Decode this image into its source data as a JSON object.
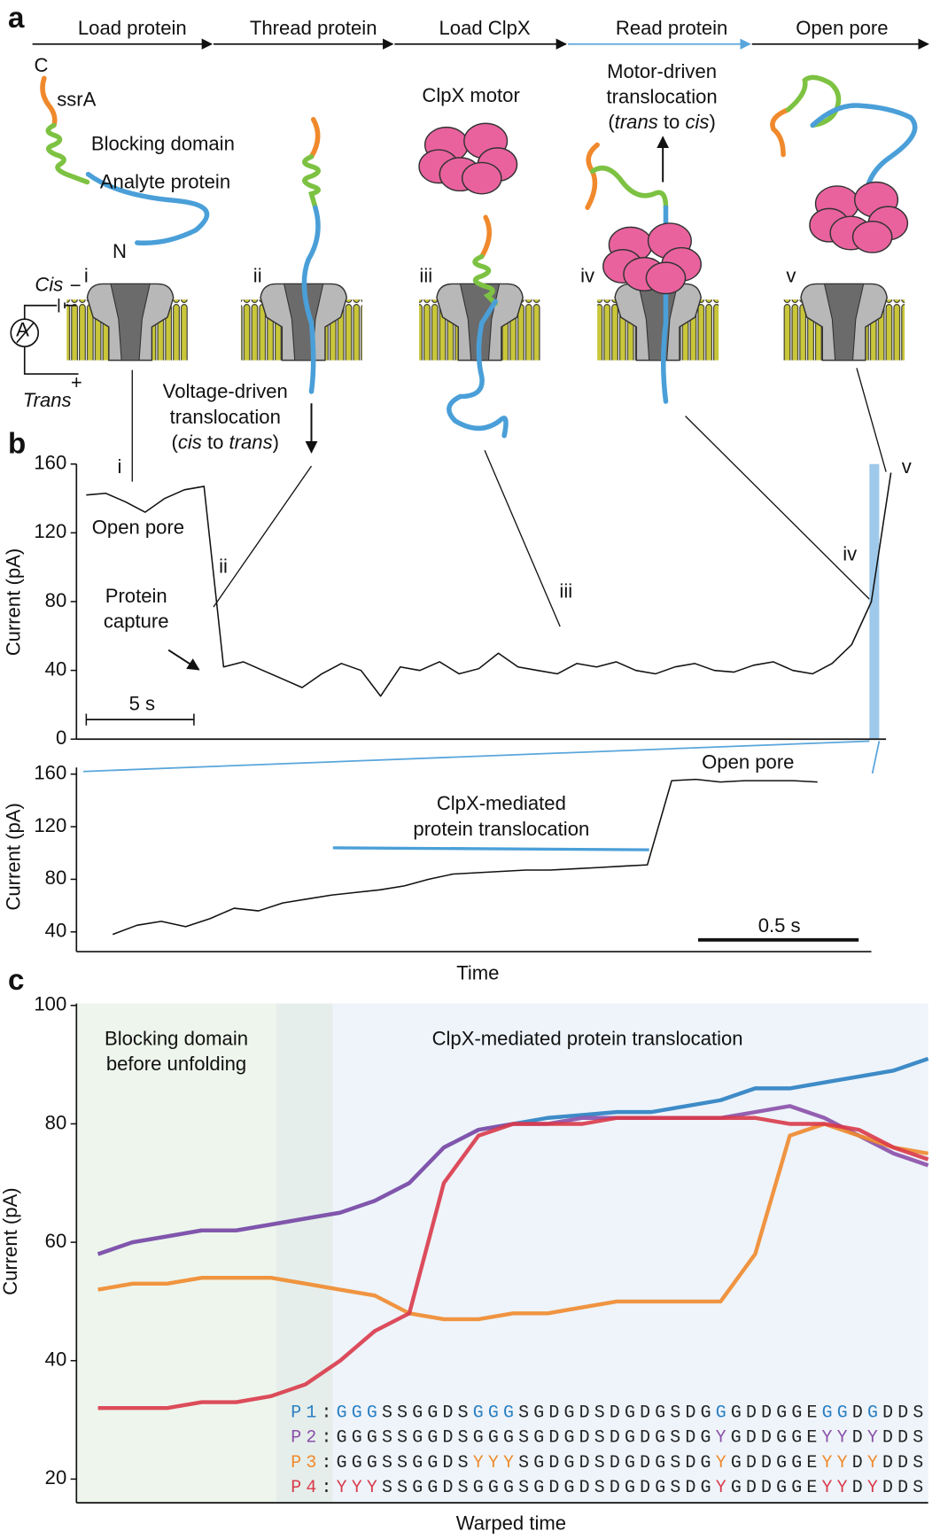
{
  "panel_labels": [
    "a",
    "b",
    "c"
  ],
  "panel_a": {
    "steps": [
      "Load protein",
      "Thread protein",
      "Load ClpX",
      "Read protein",
      "Open pore"
    ],
    "stages": [
      "i",
      "ii",
      "iii",
      "iv",
      "v"
    ],
    "labels": [
      "C",
      "ssrA",
      "Blocking domain",
      "Analyte protein",
      "N",
      "ClpX motor"
    ],
    "cis": "Cis",
    "trans": "Trans",
    "plus": "+",
    "minus": "−",
    "ammeter": "A",
    "motor_note": [
      [
        {
          "text": "Motor-driven",
          "italic": false
        }
      ],
      [
        {
          "text": "translocation",
          "italic": false
        }
      ],
      [
        {
          "text": "(",
          "italic": false
        },
        {
          "text": "trans",
          "italic": true
        },
        {
          "text": " to ",
          "italic": false
        },
        {
          "text": "cis",
          "italic": true
        },
        {
          "text": ")",
          "italic": false
        }
      ]
    ],
    "voltage_note": [
      [
        {
          "text": "Voltage-driven",
          "italic": false
        }
      ],
      [
        {
          "text": "translocation",
          "italic": false
        }
      ],
      [
        {
          "text": "(",
          "italic": false
        },
        {
          "text": "cis",
          "italic": true
        },
        {
          "text": " to ",
          "italic": false
        },
        {
          "text": "trans",
          "italic": true
        },
        {
          "text": ")",
          "italic": false
        }
      ]
    ]
  },
  "chart_data": [
    {
      "type": "line",
      "ylabel": "Current (pA)",
      "ylim": [
        0,
        160
      ],
      "yticks": [
        0,
        40,
        80,
        120,
        160
      ],
      "color": "#111",
      "values": [
        142,
        143,
        138,
        132,
        140,
        145,
        147,
        42,
        45,
        40,
        35,
        30,
        38,
        44,
        40,
        25,
        42,
        40,
        45,
        38,
        41,
        50,
        42,
        40,
        38,
        44,
        42,
        45,
        40,
        38,
        42,
        44,
        40,
        39,
        43,
        45,
        40,
        38,
        44,
        55,
        80,
        155
      ],
      "annotations": [
        "i",
        "Open pore",
        "ii",
        "Protein",
        "capture",
        "iii",
        "iv",
        "v",
        "5 s"
      ]
    },
    {
      "type": "line",
      "ylabel": "Current (pA)",
      "xlabel": "Time",
      "ylim": [
        25,
        165
      ],
      "yticks": [
        40,
        80,
        120,
        160
      ],
      "color": "#111",
      "values": [
        38,
        45,
        48,
        44,
        50,
        58,
        56,
        62,
        65,
        68,
        70,
        72,
        75,
        80,
        84,
        85,
        86,
        87,
        87,
        88,
        89,
        90,
        91,
        155,
        156,
        154,
        155,
        155,
        155,
        154
      ],
      "annotations": [
        "Open pore",
        "ClpX-mediated",
        "protein translocation",
        "0.5 s"
      ]
    },
    {
      "type": "line",
      "ylabel": "Current (pA)",
      "xlabel": "Warped time",
      "ylim": [
        16,
        100
      ],
      "yticks": [
        20,
        40,
        60,
        80,
        100
      ],
      "series": [
        {
          "color": "#2a7fc1",
          "values": [
            58,
            60,
            61,
            62,
            62,
            63,
            64,
            65,
            67,
            70,
            76,
            79,
            80,
            81,
            81.5,
            82,
            82,
            83,
            84,
            86,
            86,
            87,
            88,
            89,
            91
          ]
        },
        {
          "color": "#8a4fa8",
          "values": [
            58,
            60,
            61,
            62,
            62,
            63,
            64,
            65,
            67,
            70,
            76,
            79,
            80,
            80,
            81,
            81,
            81,
            81,
            81,
            82,
            83,
            81,
            78,
            75,
            73
          ]
        },
        {
          "color": "#f0892c",
          "values": [
            52,
            53,
            53,
            54,
            54,
            54,
            53,
            52,
            51,
            48,
            47,
            47,
            48,
            48,
            49,
            50,
            50,
            50,
            50,
            58,
            78,
            80,
            78,
            76,
            75
          ]
        },
        {
          "color": "#d93a4a",
          "values": [
            32,
            32,
            32,
            33,
            33,
            34,
            36,
            40,
            45,
            48,
            70,
            78,
            80,
            80,
            80,
            81,
            81,
            81,
            81,
            81,
            80,
            80,
            79,
            76,
            74
          ]
        }
      ],
      "annotations": [
        "Blocking domain",
        "before unfolding",
        "ClpX-mediated protein translocation"
      ],
      "sequences": [
        [
          {
            "text": "P1",
            "color": "#2a7fc1"
          },
          {
            "text": ":",
            "color": "#222"
          },
          {
            "text": "GGG",
            "color": "#2a7fc1"
          },
          {
            "text": "SSGGDS",
            "color": "#222"
          },
          {
            "text": "GGG",
            "color": "#2a7fc1"
          },
          {
            "text": "SGDGDSDGDGSDG",
            "color": "#222"
          },
          {
            "text": "G",
            "color": "#2a7fc1"
          },
          {
            "text": "GDDGGE",
            "color": "#222"
          },
          {
            "text": "GG",
            "color": "#2a7fc1"
          },
          {
            "text": "D",
            "color": "#222"
          },
          {
            "text": "G",
            "color": "#2a7fc1"
          },
          {
            "text": "DDS",
            "color": "#222"
          }
        ],
        [
          {
            "text": "P2",
            "color": "#8a4fa8"
          },
          {
            "text": ":GGGSSGGDSGGGSGDGDSDGDGSDG",
            "color": "#222"
          },
          {
            "text": "Y",
            "color": "#8a4fa8"
          },
          {
            "text": "GDDGGE",
            "color": "#222"
          },
          {
            "text": "YY",
            "color": "#8a4fa8"
          },
          {
            "text": "D",
            "color": "#222"
          },
          {
            "text": "Y",
            "color": "#8a4fa8"
          },
          {
            "text": "DDS",
            "color": "#222"
          }
        ],
        [
          {
            "text": "P3",
            "color": "#f0892c"
          },
          {
            "text": ":GGGSSGGDS",
            "color": "#222"
          },
          {
            "text": "YYY",
            "color": "#f0892c"
          },
          {
            "text": "SGDGDSDGDGSDG",
            "color": "#222"
          },
          {
            "text": "Y",
            "color": "#f0892c"
          },
          {
            "text": "GDDGGE",
            "color": "#222"
          },
          {
            "text": "YY",
            "color": "#f0892c"
          },
          {
            "text": "D",
            "color": "#222"
          },
          {
            "text": "Y",
            "color": "#f0892c"
          },
          {
            "text": "DDS",
            "color": "#222"
          }
        ],
        [
          {
            "text": "P4",
            "color": "#d93a4a"
          },
          {
            "text": ":",
            "color": "#222"
          },
          {
            "text": "YYY",
            "color": "#d93a4a"
          },
          {
            "text": "SSGGDSGGGSGDGDSDGDGSDG",
            "color": "#222"
          },
          {
            "text": "Y",
            "color": "#d93a4a"
          },
          {
            "text": "GDDGGE",
            "color": "#222"
          },
          {
            "text": "YY",
            "color": "#d93a4a"
          },
          {
            "text": "D",
            "color": "#222"
          },
          {
            "text": "Y",
            "color": "#d93a4a"
          },
          {
            "text": "DDS",
            "color": "#222"
          }
        ]
      ]
    }
  ]
}
